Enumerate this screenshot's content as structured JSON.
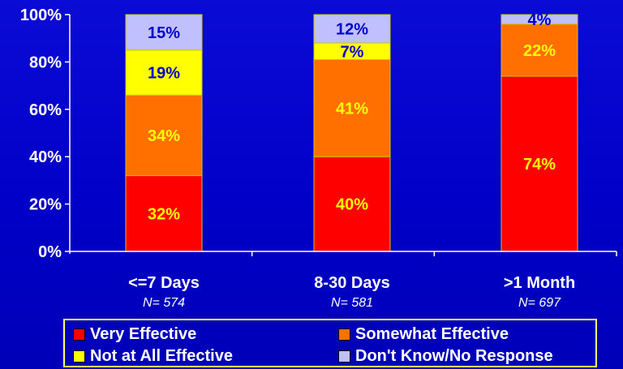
{
  "chart_data": {
    "type": "bar",
    "stacked": true,
    "title": "",
    "xlabel": "",
    "ylabel": "",
    "ylim": [
      0,
      100
    ],
    "yticks": [
      "0%",
      "20%",
      "40%",
      "60%",
      "80%",
      "100%"
    ],
    "categories": [
      "<=7 Days",
      "8-30 Days",
      ">1 Month"
    ],
    "sample_sizes": [
      "N= 574",
      "N= 581",
      "N= 697"
    ],
    "series": [
      {
        "name": "Very Effective",
        "values": [
          32,
          40,
          74
        ],
        "labels": [
          "32%",
          "40%",
          "74%"
        ],
        "color": "#ff0000",
        "label_color": "#ffff00"
      },
      {
        "name": "Somewhat Effective",
        "values": [
          34,
          41,
          22
        ],
        "labels": [
          "34%",
          "41%",
          "22%"
        ],
        "color": "#ff7000",
        "label_color": "#ffff00"
      },
      {
        "name": "Not at All Effective",
        "values": [
          19,
          7,
          0
        ],
        "labels": [
          "19%",
          "7%",
          ""
        ],
        "color": "#ffff00",
        "label_color": "#0000cc"
      },
      {
        "name": "Don't Know/No Response",
        "values": [
          15,
          12,
          4
        ],
        "labels": [
          "15%",
          "12%",
          "4%"
        ],
        "color": "#c0c0ff",
        "label_color": "#0000cc"
      }
    ],
    "grid": false,
    "legend_position": "bottom",
    "colors": {
      "background": "#0000cc",
      "axis": "#ffffff",
      "tick_text": "#ffffff",
      "legend_border": "#ffff66"
    }
  }
}
